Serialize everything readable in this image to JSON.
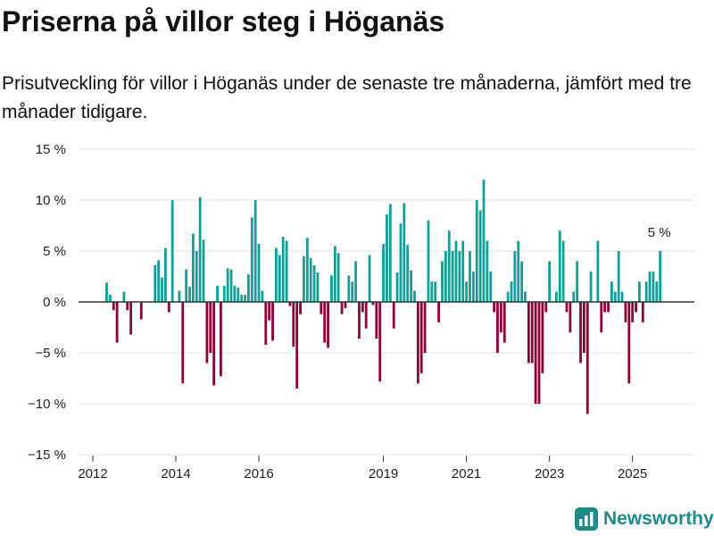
{
  "title": "Priserna på villor steg i Höganäs",
  "subtitle": "Prisutveckling för villor i Höganäs under de senaste tre månaderna, jämfört med tre månader tidigare.",
  "brand": {
    "name": "Newsworthy"
  },
  "colors": {
    "positive": "#119f9a",
    "negative": "#8f0039",
    "zero_line": "#333333",
    "grid": "#e6e6e6"
  },
  "chart_data": {
    "type": "bar",
    "title": "Priserna på villor steg i Höganäs",
    "xlabel": "",
    "ylabel": "",
    "ylim": [
      -15,
      15
    ],
    "y_ticks": [
      {
        "value": 15,
        "label": "15 %"
      },
      {
        "value": 10,
        "label": "10 %"
      },
      {
        "value": 5,
        "label": "5 %"
      },
      {
        "value": 0,
        "label": "0 %"
      },
      {
        "value": -5,
        "label": "−5 %"
      },
      {
        "value": -10,
        "label": "−10 %"
      },
      {
        "value": -15,
        "label": "−15 %"
      }
    ],
    "x_start": "2012-01",
    "x_ticks": [
      {
        "month_index": 0,
        "label": "2012"
      },
      {
        "month_index": 24,
        "label": "2014"
      },
      {
        "month_index": 48,
        "label": "2016"
      },
      {
        "month_index": 84,
        "label": "2019"
      },
      {
        "month_index": 108,
        "label": "2021"
      },
      {
        "month_index": 132,
        "label": "2023"
      },
      {
        "month_index": 156,
        "label": "2025"
      }
    ],
    "bars": [
      {
        "m": 4,
        "v": 1.9
      },
      {
        "m": 5,
        "v": 0.7
      },
      {
        "m": 6,
        "v": -0.8
      },
      {
        "m": 7,
        "v": -4.0
      },
      {
        "m": 9,
        "v": 1.0
      },
      {
        "m": 10,
        "v": -0.8
      },
      {
        "m": 11,
        "v": -3.2
      },
      {
        "m": 14,
        "v": -1.7
      },
      {
        "m": 18,
        "v": 3.6
      },
      {
        "m": 19,
        "v": 4.1
      },
      {
        "m": 20,
        "v": 2.4
      },
      {
        "m": 21,
        "v": 5.3
      },
      {
        "m": 22,
        "v": -1.0
      },
      {
        "m": 23,
        "v": 10.0
      },
      {
        "m": 25,
        "v": 1.1
      },
      {
        "m": 26,
        "v": -8.0
      },
      {
        "m": 27,
        "v": 3.2
      },
      {
        "m": 28,
        "v": 1.5
      },
      {
        "m": 29,
        "v": 6.7
      },
      {
        "m": 30,
        "v": 5.0
      },
      {
        "m": 31,
        "v": 10.3
      },
      {
        "m": 32,
        "v": 6.1
      },
      {
        "m": 33,
        "v": -6.0
      },
      {
        "m": 34,
        "v": -5.0
      },
      {
        "m": 35,
        "v": -8.2
      },
      {
        "m": 36,
        "v": 1.6
      },
      {
        "m": 37,
        "v": -7.3
      },
      {
        "m": 38,
        "v": 1.6
      },
      {
        "m": 39,
        "v": 3.3
      },
      {
        "m": 40,
        "v": 3.2
      },
      {
        "m": 41,
        "v": 1.6
      },
      {
        "m": 42,
        "v": 1.4
      },
      {
        "m": 43,
        "v": 0.7
      },
      {
        "m": 44,
        "v": 0.7
      },
      {
        "m": 45,
        "v": 2.7
      },
      {
        "m": 46,
        "v": 8.3
      },
      {
        "m": 47,
        "v": 10.0
      },
      {
        "m": 48,
        "v": 5.7
      },
      {
        "m": 49,
        "v": 1.1
      },
      {
        "m": 50,
        "v": -4.2
      },
      {
        "m": 51,
        "v": -1.8
      },
      {
        "m": 52,
        "v": -3.8
      },
      {
        "m": 53,
        "v": 5.3
      },
      {
        "m": 54,
        "v": 4.6
      },
      {
        "m": 55,
        "v": 6.4
      },
      {
        "m": 56,
        "v": 6.0
      },
      {
        "m": 57,
        "v": -0.4
      },
      {
        "m": 58,
        "v": -4.4
      },
      {
        "m": 59,
        "v": -8.5
      },
      {
        "m": 60,
        "v": -1.2
      },
      {
        "m": 61,
        "v": 4.5
      },
      {
        "m": 62,
        "v": 6.3
      },
      {
        "m": 63,
        "v": 4.3
      },
      {
        "m": 64,
        "v": 3.6
      },
      {
        "m": 65,
        "v": 2.9
      },
      {
        "m": 66,
        "v": -1.2
      },
      {
        "m": 67,
        "v": -4.0
      },
      {
        "m": 68,
        "v": -4.5
      },
      {
        "m": 69,
        "v": 2.6
      },
      {
        "m": 70,
        "v": 5.5
      },
      {
        "m": 71,
        "v": 4.8
      },
      {
        "m": 72,
        "v": -1.2
      },
      {
        "m": 73,
        "v": -0.6
      },
      {
        "m": 74,
        "v": 2.6
      },
      {
        "m": 75,
        "v": 2.0
      },
      {
        "m": 76,
        "v": 4.0
      },
      {
        "m": 77,
        "v": -3.6
      },
      {
        "m": 78,
        "v": -1.0
      },
      {
        "m": 79,
        "v": -2.6
      },
      {
        "m": 80,
        "v": 4.6
      },
      {
        "m": 81,
        "v": -0.3
      },
      {
        "m": 82,
        "v": -3.6
      },
      {
        "m": 83,
        "v": -7.8
      },
      {
        "m": 84,
        "v": 5.7
      },
      {
        "m": 85,
        "v": 8.6
      },
      {
        "m": 86,
        "v": 9.6
      },
      {
        "m": 87,
        "v": -2.6
      },
      {
        "m": 88,
        "v": 2.9
      },
      {
        "m": 89,
        "v": 7.7
      },
      {
        "m": 90,
        "v": 9.7
      },
      {
        "m": 91,
        "v": 5.6
      },
      {
        "m": 92,
        "v": 3.1
      },
      {
        "m": 93,
        "v": 1.1
      },
      {
        "m": 94,
        "v": -8.0
      },
      {
        "m": 95,
        "v": -7.0
      },
      {
        "m": 96,
        "v": -5.0
      },
      {
        "m": 97,
        "v": 8.0
      },
      {
        "m": 98,
        "v": 2.0
      },
      {
        "m": 99,
        "v": 2.0
      },
      {
        "m": 100,
        "v": -2.0
      },
      {
        "m": 101,
        "v": 4.0
      },
      {
        "m": 102,
        "v": 5.0
      },
      {
        "m": 103,
        "v": 7.0
      },
      {
        "m": 104,
        "v": 5.0
      },
      {
        "m": 105,
        "v": 6.0
      },
      {
        "m": 106,
        "v": 5.0
      },
      {
        "m": 107,
        "v": 6.0
      },
      {
        "m": 108,
        "v": 2.0
      },
      {
        "m": 109,
        "v": 5.0
      },
      {
        "m": 110,
        "v": 3.0
      },
      {
        "m": 111,
        "v": 10.0
      },
      {
        "m": 112,
        "v": 9.0
      },
      {
        "m": 113,
        "v": 12.0
      },
      {
        "m": 114,
        "v": 6.0
      },
      {
        "m": 115,
        "v": 3.0
      },
      {
        "m": 116,
        "v": -1.0
      },
      {
        "m": 117,
        "v": -5.0
      },
      {
        "m": 118,
        "v": -3.0
      },
      {
        "m": 119,
        "v": -4.0
      },
      {
        "m": 120,
        "v": 1.0
      },
      {
        "m": 121,
        "v": 2.0
      },
      {
        "m": 122,
        "v": 5.0
      },
      {
        "m": 123,
        "v": 6.0
      },
      {
        "m": 124,
        "v": 4.0
      },
      {
        "m": 125,
        "v": 1.0
      },
      {
        "m": 126,
        "v": -6.0
      },
      {
        "m": 127,
        "v": -6.0
      },
      {
        "m": 128,
        "v": -10.0
      },
      {
        "m": 129,
        "v": -10.0
      },
      {
        "m": 130,
        "v": -7.0
      },
      {
        "m": 131,
        "v": -1.0
      },
      {
        "m": 132,
        "v": 4.0
      },
      {
        "m": 134,
        "v": 1.0
      },
      {
        "m": 135,
        "v": 7.0
      },
      {
        "m": 136,
        "v": 6.0
      },
      {
        "m": 137,
        "v": -1.0
      },
      {
        "m": 138,
        "v": -3.0
      },
      {
        "m": 139,
        "v": 1.0
      },
      {
        "m": 140,
        "v": 4.0
      },
      {
        "m": 141,
        "v": -6.0
      },
      {
        "m": 142,
        "v": -5.0
      },
      {
        "m": 143,
        "v": -11.0
      },
      {
        "m": 144,
        "v": 3.0
      },
      {
        "m": 146,
        "v": 6.0
      },
      {
        "m": 147,
        "v": -3.0
      },
      {
        "m": 148,
        "v": -1.0
      },
      {
        "m": 149,
        "v": -1.0
      },
      {
        "m": 150,
        "v": 2.0
      },
      {
        "m": 151,
        "v": 1.0
      },
      {
        "m": 152,
        "v": 5.0
      },
      {
        "m": 153,
        "v": 1.0
      },
      {
        "m": 154,
        "v": -2.0
      },
      {
        "m": 155,
        "v": -8.0
      },
      {
        "m": 156,
        "v": -2.0
      },
      {
        "m": 157,
        "v": -1.0
      },
      {
        "m": 158,
        "v": 2.0
      },
      {
        "m": 159,
        "v": -2.0
      },
      {
        "m": 160,
        "v": 2.0
      },
      {
        "m": 161,
        "v": 3.0
      },
      {
        "m": 162,
        "v": 3.0
      },
      {
        "m": 163,
        "v": 2.0
      },
      {
        "m": 164,
        "v": 5.0
      }
    ],
    "annotations": [
      {
        "month_index": 164,
        "value": 5,
        "text": "5 %"
      }
    ]
  }
}
